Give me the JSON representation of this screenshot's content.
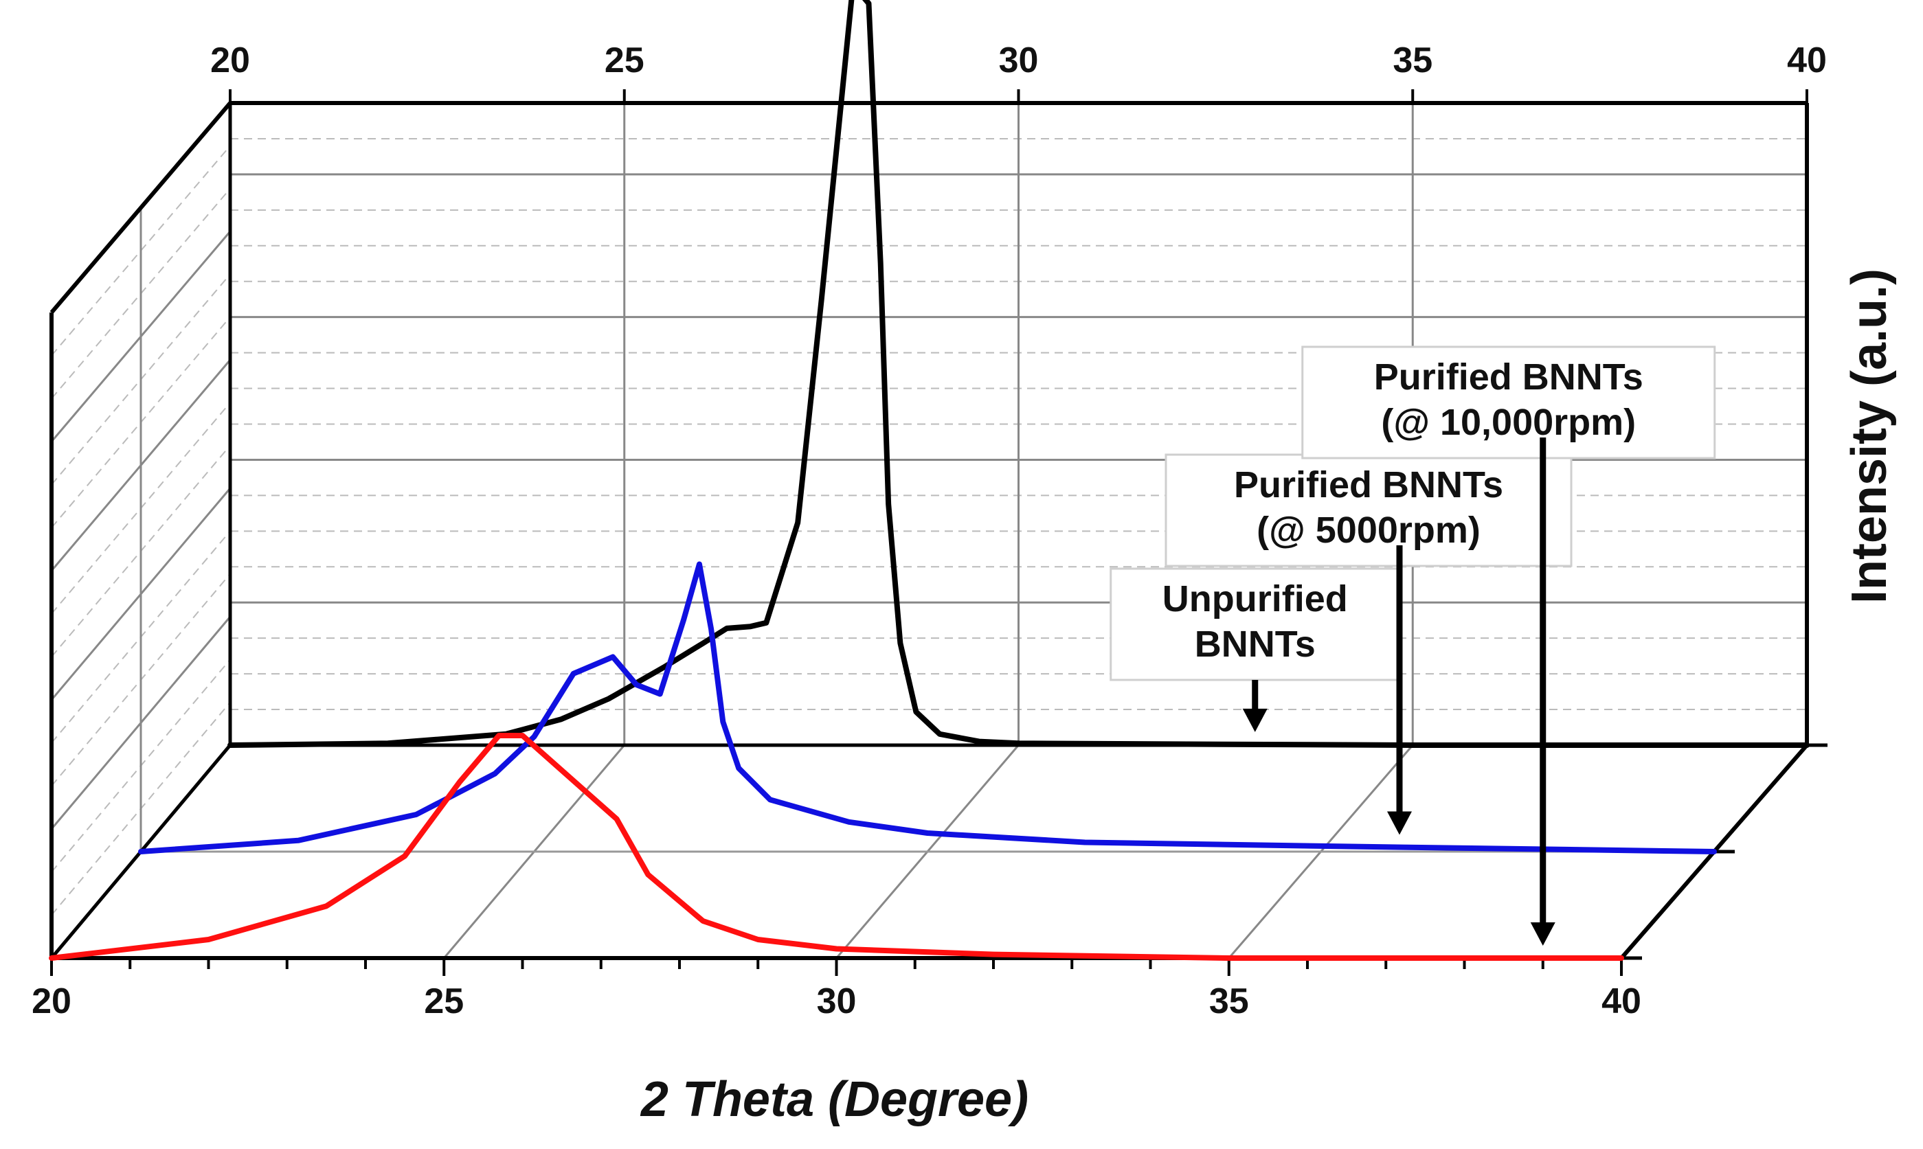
{
  "chart_data": {
    "type": "line",
    "subtype": "3d-waterfall",
    "xlabel": "2 Theta (Degree)",
    "ylabel": "Intensity (a.u.)",
    "xlim": [
      20,
      40
    ],
    "x_ticks": [
      "20",
      "25",
      "30",
      "35",
      "40"
    ],
    "grid": true,
    "series": [
      {
        "name": "Unpurified BNNTs",
        "color": "#000000",
        "depth": 2,
        "x": [
          20.0,
          22.0,
          23.5,
          24.2,
          24.8,
          25.5,
          26.0,
          26.3,
          26.6,
          26.8,
          27.2,
          27.5,
          27.9,
          28.1,
          28.25,
          28.35,
          28.5,
          28.7,
          29.0,
          29.5,
          30.0,
          35.0,
          40.0
        ],
        "values": [
          0.0,
          0.01,
          0.06,
          0.14,
          0.25,
          0.42,
          0.55,
          0.63,
          0.64,
          0.66,
          1.2,
          2.4,
          4.1,
          4.0,
          2.6,
          1.3,
          0.55,
          0.18,
          0.06,
          0.02,
          0.01,
          0.0,
          0.0
        ]
      },
      {
        "name": "Purified BNNTs (@ 5000rpm)",
        "color": "#1010e0",
        "depth": 1,
        "x": [
          20.0,
          22.0,
          23.5,
          24.5,
          25.0,
          25.5,
          26.0,
          26.3,
          26.6,
          26.9,
          27.1,
          27.25,
          27.4,
          27.6,
          28.0,
          29.0,
          30.0,
          32.0,
          35.0,
          40.0
        ],
        "values": [
          0.0,
          0.06,
          0.2,
          0.42,
          0.62,
          0.96,
          1.05,
          0.9,
          0.85,
          1.25,
          1.55,
          1.2,
          0.7,
          0.45,
          0.28,
          0.16,
          0.1,
          0.05,
          0.03,
          0.0
        ]
      },
      {
        "name": "Purified BNNTs (@ 10,000rpm)",
        "color": "#ff1010",
        "depth": 0,
        "x": [
          20.0,
          22.0,
          23.5,
          24.5,
          25.2,
          25.7,
          26.0,
          26.4,
          26.8,
          27.2,
          27.6,
          28.3,
          29.0,
          30.0,
          32.0,
          35.0,
          40.0
        ],
        "values": [
          0.0,
          0.1,
          0.28,
          0.55,
          0.95,
          1.2,
          1.2,
          1.05,
          0.9,
          0.75,
          0.45,
          0.2,
          0.1,
          0.05,
          0.02,
          0.0,
          0.0
        ]
      }
    ],
    "annotations": [
      {
        "lines": [
          "Unpurified",
          "BNNTs"
        ],
        "arrow_x": 33.0,
        "series": "Unpurified BNNTs"
      },
      {
        "lines": [
          "Purified BNNTs",
          "(@ 5000rpm)"
        ],
        "arrow_x": 36.0,
        "series": "Purified BNNTs (@ 5000rpm)"
      },
      {
        "lines": [
          "Purified BNNTs",
          "(@ 10,000rpm)"
        ],
        "arrow_x": 39.0,
        "series": "Purified BNNTs (@ 10,000rpm)"
      }
    ]
  }
}
